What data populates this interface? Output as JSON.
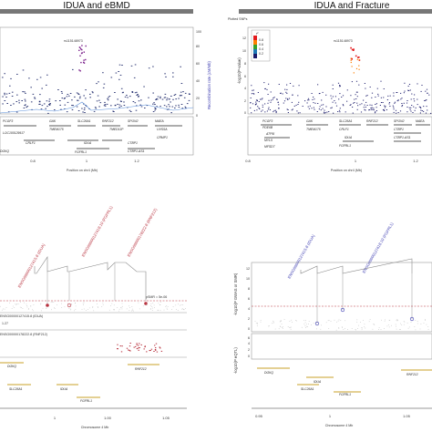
{
  "colors": {
    "navy": "#1f2a6b",
    "lead": "#7a1f8a",
    "red": "#b8323f",
    "blue": "#3a3ab0",
    "gene": "#222222",
    "frame": "#9a9a9a",
    "recomb": "#5a8fd9",
    "gold": "#c9a227",
    "legend": [
      "#e31a1c",
      "#ff7f00",
      "#33a02c",
      "#1f78b4",
      "#1a1a6b"
    ]
  },
  "chart_data": [
    {
      "id": "ebmd",
      "type": "scatter",
      "title": "IDUA and eBMD",
      "xlabel": "Position on chr4 (Mb)",
      "ylabel": "Recombination rate (cM/Mb)",
      "x_ticks": [
        "0.8",
        "1",
        "1.2"
      ],
      "y2_ticks": [
        "0",
        "20",
        "40",
        "60",
        "80",
        "100"
      ],
      "lead_label": "rs115148973",
      "genes": [
        "PCGF3",
        "LOC100129917",
        "GAK",
        "TMEM175",
        "SLC26A1",
        "IDUA",
        "FGFRL1",
        "RNF212",
        "TMED11P",
        "SPON2",
        "CTBP1",
        "CTBP1-AS1",
        "MAEA",
        "UVSSA",
        "CRMP1",
        "CRLF1",
        "DGKQ"
      ]
    },
    {
      "id": "fracture",
      "type": "scatter",
      "title": "IDUA and Fracture",
      "legend_title": "Plotted SNPs",
      "xlabel": "Position on chr4 (Mb)",
      "ylabel": "-log10(P-value)",
      "x_ticks": [
        "0.8",
        "1",
        "1.2"
      ],
      "y_ticks": [
        "0",
        "2",
        "4",
        "6",
        "8",
        "10",
        "12"
      ],
      "r2_label": "r²",
      "r2_ticks": [
        "0.8",
        "0.6",
        "0.4",
        "0.2"
      ],
      "lead_label": "rs115148973",
      "genes": [
        "PCGF3",
        "PDE6B",
        "ATP5I",
        "MYL5",
        "MFSD7",
        "GAK",
        "TMEM175",
        "SLC26A1",
        "IDUA",
        "FGFRL1",
        "RNF212",
        "SPON2",
        "CTBP1",
        "CTBP1-AS1",
        "MAEA",
        "CRLF1"
      ]
    },
    {
      "id": "eqtl_left",
      "type": "scatter",
      "rot_labels": [
        "ENSG00000127415.8 (IDUA)",
        "ENSG00000127418.10 (FGFRL1)",
        "ENSG00000178222.8 (RNF212)"
      ],
      "threshold_label": "pSMR = 5e-06",
      "track_labels": [
        "ENSG00000127415.8 (IDUA)",
        "ENSG00000178222.8 (RNF212)"
      ],
      "track_value": "1.27",
      "genes": [
        "DGKQ",
        "SLC26A1",
        "IDUA",
        "FGFRL1",
        "RNF212"
      ],
      "xlabel": "Chromosome 4 Mb",
      "x_ticks": [
        "1",
        "1.05"
      ],
      "x_ticks_partial": [
        "0.95",
        "1.00"
      ]
    },
    {
      "id": "eqtl_right",
      "type": "scatter",
      "rot_labels": [
        "ENSG00000127415.8 (IDUA)",
        "ENSG00000127418.10 (FGFRL1)"
      ],
      "ylabel_top": "-log10(P GWAS or SMR)",
      "ylabel_bottom": "-log10(P eQTL)",
      "y_ticks_top": [
        "0",
        "2",
        "4",
        "6",
        "8",
        "10",
        "12"
      ],
      "y_ticks_bottom": [
        "0",
        "2",
        "4",
        "6",
        "8",
        "10",
        "12"
      ],
      "genes": [
        "DGKQ",
        "IDUA",
        "SLC26A1",
        "FGFRL1",
        "RNF212"
      ],
      "xlabel": "Chromosome 4 Mb",
      "x_ticks": [
        "0.95",
        "1",
        "1.05"
      ]
    }
  ]
}
